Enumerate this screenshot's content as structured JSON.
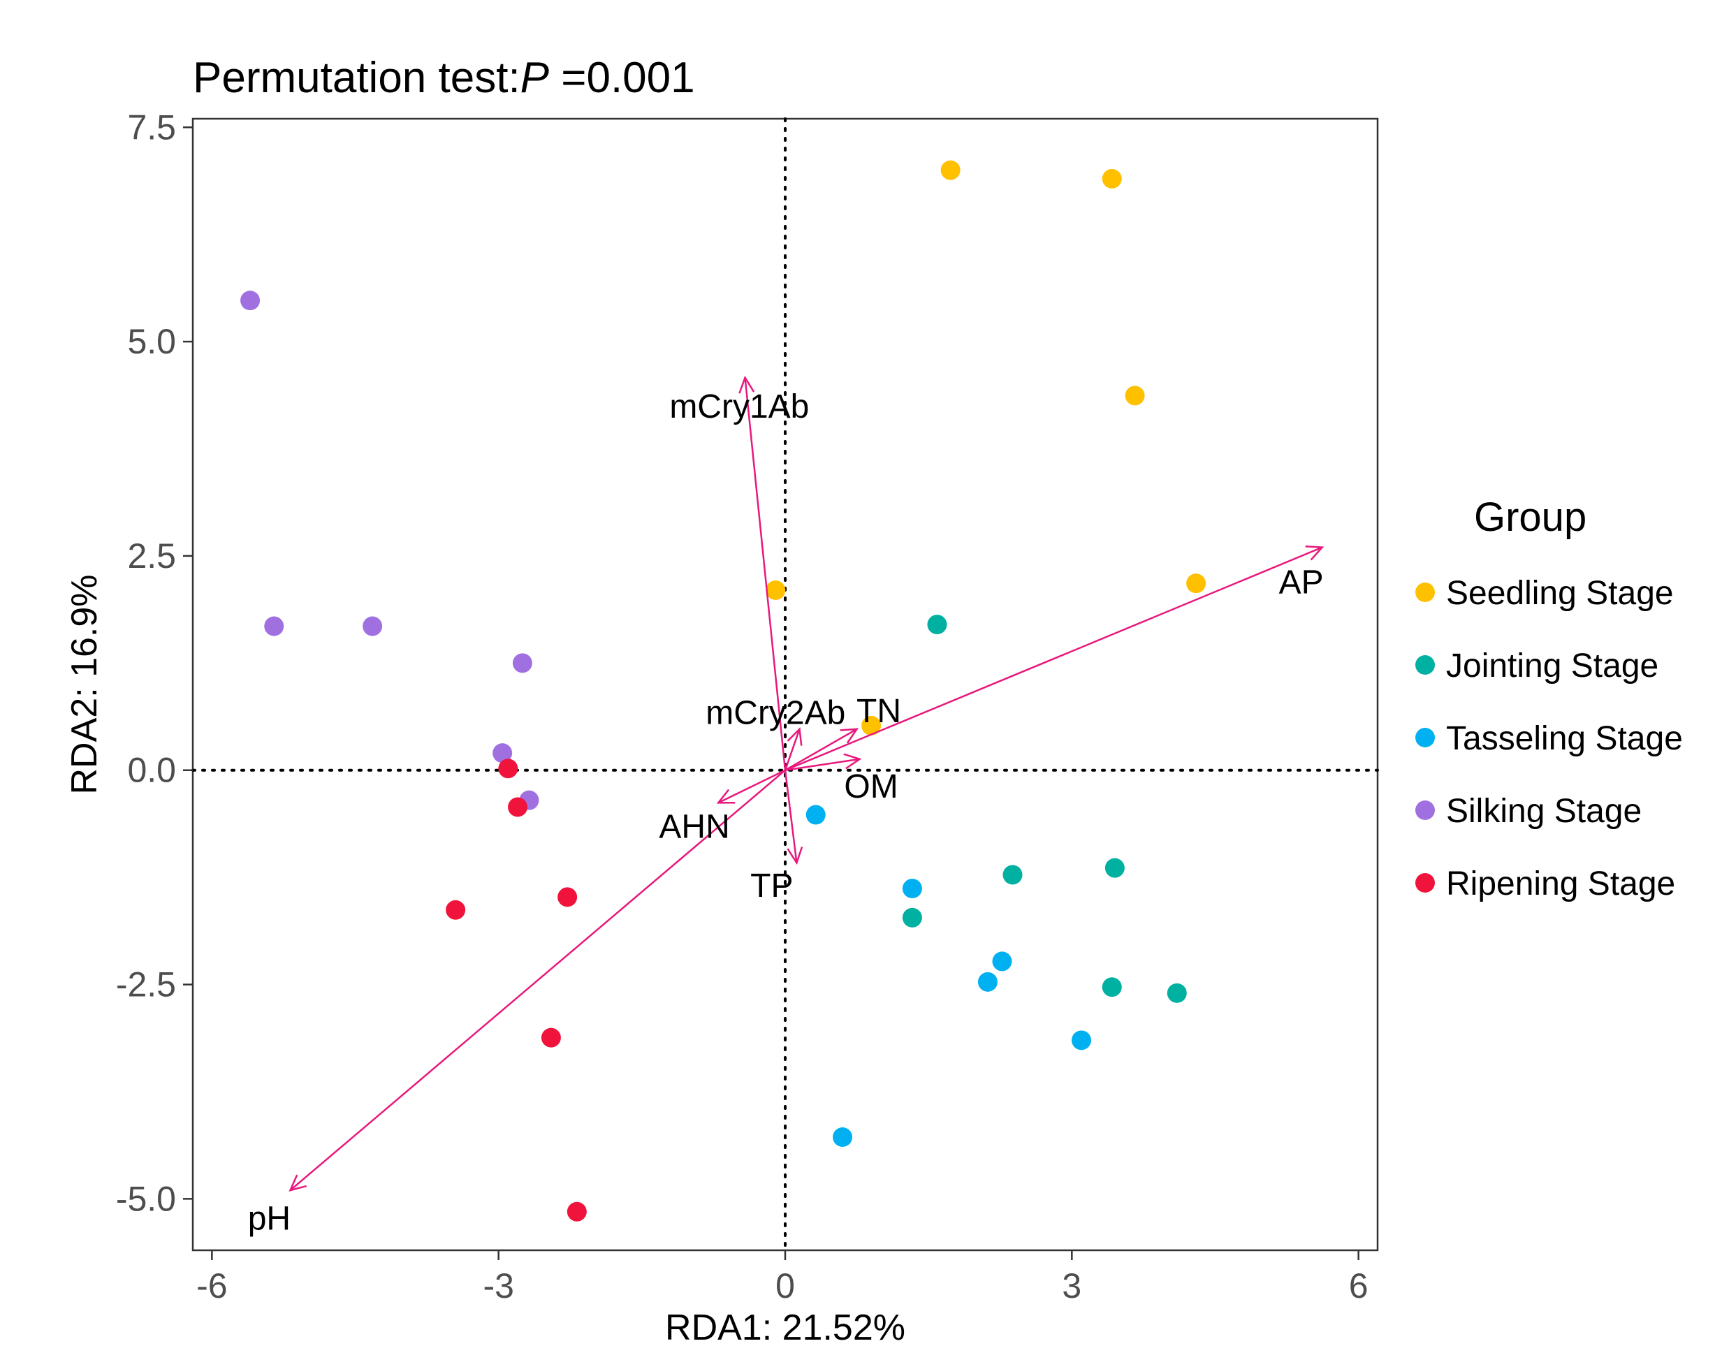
{
  "chart_data": {
    "type": "scatter",
    "title_prefix": "Permutation test:",
    "title_italic": "P",
    "title_suffix": " =0.001",
    "xlabel": "RDA1: 21.52%",
    "ylabel": "RDA2: 16.9%",
    "xlim": [
      -6.2,
      6.2
    ],
    "ylim": [
      -5.6,
      7.6
    ],
    "xticks": [
      -6,
      -3,
      0,
      3,
      6
    ],
    "xtick_labels": [
      "-6",
      "-3",
      "0",
      "3",
      "6"
    ],
    "yticks": [
      -5,
      -2.5,
      0,
      2.5,
      5,
      7.5
    ],
    "ytick_labels": [
      "-5.0",
      "-2.5",
      "0.0",
      "2.5",
      "5.0",
      "7.5"
    ],
    "legend_title": "Group",
    "legend_position": "right",
    "series": [
      {
        "name": "Seedling Stage",
        "color": "#FFC000",
        "points": [
          [
            1.73,
            7.0
          ],
          [
            3.42,
            6.9
          ],
          [
            3.66,
            4.37
          ],
          [
            4.3,
            2.18
          ],
          [
            -0.1,
            2.1
          ],
          [
            0.9,
            0.52
          ]
        ]
      },
      {
        "name": "Jointing Stage",
        "color": "#00B0A0",
        "points": [
          [
            1.59,
            1.7
          ],
          [
            2.38,
            -1.22
          ],
          [
            3.45,
            -1.14
          ],
          [
            1.33,
            -1.72
          ],
          [
            3.42,
            -2.53
          ],
          [
            4.1,
            -2.6
          ]
        ]
      },
      {
        "name": "Tasseling Stage",
        "color": "#00B0F0",
        "points": [
          [
            0.32,
            -0.52
          ],
          [
            1.33,
            -1.38
          ],
          [
            2.27,
            -2.23
          ],
          [
            2.12,
            -2.47
          ],
          [
            3.1,
            -3.15
          ],
          [
            0.6,
            -4.28
          ]
        ]
      },
      {
        "name": "Silking Stage",
        "color": "#A070E0",
        "points": [
          [
            -5.6,
            5.48
          ],
          [
            -5.35,
            1.68
          ],
          [
            -4.32,
            1.68
          ],
          [
            -2.75,
            1.25
          ],
          [
            -2.96,
            0.2
          ],
          [
            -2.68,
            -0.35
          ]
        ]
      },
      {
        "name": "Ripening  Stage",
        "color": "#F0143C",
        "points": [
          [
            -2.9,
            0.02
          ],
          [
            -2.8,
            -0.43
          ],
          [
            -2.28,
            -1.48
          ],
          [
            -3.45,
            -1.63
          ],
          [
            -2.45,
            -3.12
          ],
          [
            -2.18,
            -5.15
          ]
        ]
      }
    ],
    "vectors": [
      {
        "name": "mCry1Ab",
        "x": -0.42,
        "y": 4.58,
        "label_x": -0.48,
        "label_y": 4.25
      },
      {
        "name": "mCry2Ab",
        "x": 0.15,
        "y": 0.48,
        "label_x": -0.1,
        "label_y": 0.68
      },
      {
        "name": "TN",
        "x": 0.75,
        "y": 0.48,
        "label_x": 0.98,
        "label_y": 0.7
      },
      {
        "name": "OM",
        "x": 0.78,
        "y": 0.13,
        "label_x": 0.9,
        "label_y": -0.18
      },
      {
        "name": "AP",
        "x": 5.62,
        "y": 2.6,
        "label_x": 5.4,
        "label_y": 2.2
      },
      {
        "name": "AHN",
        "x": -0.7,
        "y": -0.38,
        "label_x": -0.95,
        "label_y": -0.65
      },
      {
        "name": "TP",
        "x": 0.12,
        "y": -1.08,
        "label_x": -0.14,
        "label_y": -1.34
      },
      {
        "name": "pH",
        "x": -5.18,
        "y": -4.9,
        "label_x": -5.4,
        "label_y": -5.22
      }
    ],
    "vector_color": "#E8187C",
    "reference_lines": {
      "x": 0,
      "y": 0,
      "style": "dotted"
    }
  }
}
